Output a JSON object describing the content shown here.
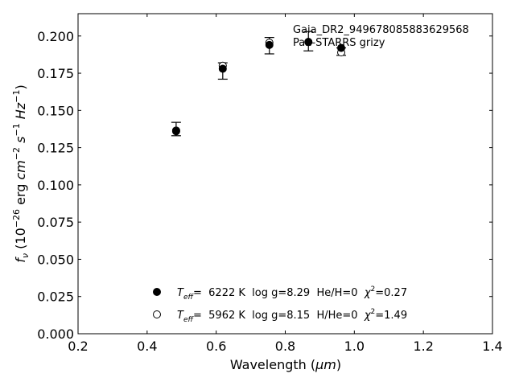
{
  "chart_data": {
    "type": "scatter",
    "title_lines": [
      "Gaia_DR2_949678085883629568",
      "Pan-STARRS grizy"
    ],
    "xlabel_prefix": "Wavelength (",
    "xlabel_unit": "μm",
    "xlabel_suffix": ")",
    "ylabel_f": "f",
    "ylabel_sub": "ν",
    "ylabel_rest": " (10",
    "ylabel_exp1": "−26",
    "ylabel_mid": " erg ",
    "ylabel_cm": "cm",
    "ylabel_exp2": "−2",
    "ylabel_s": "s",
    "ylabel_exp3": "−1",
    "ylabel_hz": "Hz",
    "ylabel_exp4": "−1",
    "ylabel_end": ")",
    "xlim": [
      0.2,
      1.4
    ],
    "ylim": [
      0.0,
      0.215
    ],
    "xticks": [
      0.2,
      0.4,
      0.6,
      0.8,
      1.0,
      1.2,
      1.4
    ],
    "xtick_labels": [
      "0.2",
      "0.4",
      "0.6",
      "0.8",
      "1.0",
      "1.2",
      "1.4"
    ],
    "yticks": [
      0.0,
      0.025,
      0.05,
      0.075,
      0.1,
      0.125,
      0.15,
      0.175,
      0.2
    ],
    "ytick_labels": [
      "0.000",
      "0.025",
      "0.050",
      "0.075",
      "0.100",
      "0.125",
      "0.150",
      "0.175",
      "0.200"
    ],
    "grid": false,
    "legend_position": "bottom-center",
    "observed": {
      "x": [
        0.484,
        0.619,
        0.754,
        0.867,
        0.962
      ],
      "y": [
        0.1375,
        0.1765,
        0.1935,
        0.1965,
        0.1895
      ],
      "yerr": [
        0.0045,
        0.0055,
        0.0055,
        0.0065,
        0.0025
      ]
    },
    "series": [
      {
        "marker": "filled",
        "x": [
          0.484,
          0.619,
          0.754,
          0.867,
          0.962
        ],
        "y": [
          0.136,
          0.178,
          0.194,
          0.196,
          0.192
        ],
        "legend_teff_label": "T",
        "legend_teff_sub": "eff",
        "legend_text": "=  6222 K  log g=8.29  He/H=0  ",
        "legend_chi_label": "χ",
        "legend_chi_sup": "2",
        "legend_chi_value": "=0.27"
      },
      {
        "marker": "open",
        "x": [
          0.484,
          0.619,
          0.754,
          0.867,
          0.962
        ],
        "y": [
          0.1365,
          0.18,
          0.1955,
          0.196,
          0.189
        ],
        "legend_teff_label": "T",
        "legend_teff_sub": "eff",
        "legend_text": "=  5962 K  log g=8.15  H/He=0  ",
        "legend_chi_label": "χ",
        "legend_chi_sup": "2",
        "legend_chi_value": "=1.49"
      }
    ]
  }
}
